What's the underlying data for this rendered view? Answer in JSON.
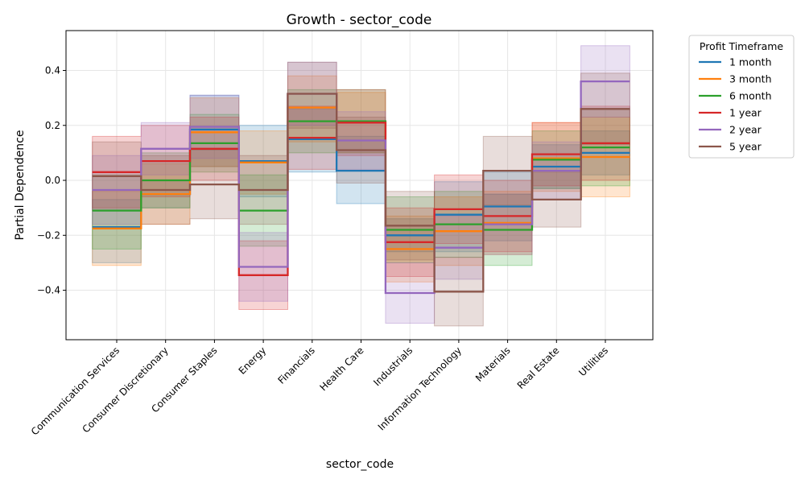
{
  "chart_data": {
    "type": "line",
    "title": "Growth - sector_code",
    "xlabel": "sector_code",
    "ylabel": "Partial Dependence",
    "categories": [
      "Communication Services",
      "Consumer Discretionary",
      "Consumer Staples",
      "Energy",
      "Financials",
      "Health Care",
      "Industrials",
      "Information Technology",
      "Materials",
      "Real Estate",
      "Utilities"
    ],
    "ylim": [
      -0.58,
      0.545
    ],
    "yticks": [
      -0.4,
      -0.2,
      0.0,
      0.2,
      0.4
    ],
    "ytick_labels": [
      "−0.4",
      "−0.2",
      "0.0",
      "0.2",
      "0.4"
    ],
    "grid": true,
    "legend": {
      "title": "Profit Timeframe",
      "placement": "outside-right"
    },
    "step_plot": true,
    "confidence_bands": true,
    "series": [
      {
        "name": "1 month",
        "color": "#1f77b4",
        "values": [
          -0.17,
          -0.05,
          0.185,
          0.07,
          0.15,
          0.035,
          -0.2,
          -0.125,
          -0.095,
          0.05,
          0.1
        ],
        "lower": [
          -0.3,
          -0.1,
          0.05,
          -0.06,
          0.03,
          -0.085,
          -0.26,
          -0.26,
          -0.22,
          -0.03,
          0.02
        ],
        "upper": [
          -0.07,
          0.0,
          0.31,
          0.2,
          0.26,
          0.16,
          -0.14,
          -0.005,
          0.03,
          0.13,
          0.18
        ]
      },
      {
        "name": "3 month",
        "color": "#ff7f0e",
        "values": [
          -0.175,
          -0.05,
          0.175,
          0.065,
          0.265,
          0.21,
          -0.25,
          -0.185,
          -0.155,
          0.08,
          0.085
        ],
        "lower": [
          -0.31,
          -0.16,
          0.05,
          -0.05,
          0.14,
          0.1,
          -0.37,
          -0.31,
          -0.27,
          -0.04,
          -0.06
        ],
        "upper": [
          -0.04,
          0.06,
          0.3,
          0.18,
          0.38,
          0.32,
          -0.13,
          -0.06,
          -0.04,
          0.21,
          0.23
        ]
      },
      {
        "name": "6 month",
        "color": "#2ca02c",
        "values": [
          -0.11,
          0.0,
          0.135,
          -0.11,
          0.215,
          0.215,
          -0.18,
          -0.16,
          -0.18,
          0.075,
          0.12
        ],
        "lower": [
          -0.25,
          -0.1,
          0.03,
          -0.24,
          0.1,
          0.1,
          -0.3,
          -0.28,
          -0.31,
          -0.03,
          -0.02
        ],
        "upper": [
          0.02,
          0.1,
          0.24,
          0.02,
          0.33,
          0.33,
          -0.06,
          -0.04,
          -0.05,
          0.18,
          0.26
        ]
      },
      {
        "name": "1 year",
        "color": "#d62728",
        "values": [
          0.03,
          0.07,
          0.115,
          -0.345,
          0.155,
          0.21,
          -0.225,
          -0.105,
          -0.13,
          0.095,
          0.135
        ],
        "lower": [
          -0.1,
          -0.06,
          0.0,
          -0.47,
          0.04,
          0.09,
          -0.35,
          -0.23,
          -0.26,
          -0.02,
          0.0
        ],
        "upper": [
          0.16,
          0.2,
          0.23,
          -0.22,
          0.27,
          0.33,
          -0.1,
          0.02,
          0.0,
          0.21,
          0.27
        ]
      },
      {
        "name": "2 year",
        "color": "#9467bd",
        "values": [
          -0.035,
          0.115,
          0.195,
          -0.315,
          0.315,
          0.145,
          -0.41,
          -0.245,
          -0.16,
          0.035,
          0.36
        ],
        "lower": [
          -0.16,
          0.02,
          0.08,
          -0.44,
          0.2,
          0.04,
          -0.52,
          -0.36,
          -0.27,
          -0.07,
          0.23
        ],
        "upper": [
          0.09,
          0.21,
          0.31,
          -0.19,
          0.43,
          0.25,
          -0.3,
          -0.13,
          -0.05,
          0.14,
          0.49
        ]
      },
      {
        "name": "5 year",
        "color": "#8c564b",
        "values": [
          0.015,
          -0.035,
          -0.015,
          -0.035,
          0.315,
          0.11,
          -0.165,
          -0.405,
          0.035,
          -0.07,
          0.26
        ],
        "lower": [
          -0.11,
          -0.16,
          -0.14,
          -0.16,
          0.19,
          -0.01,
          -0.29,
          -0.53,
          -0.09,
          -0.17,
          0.13
        ],
        "upper": [
          0.14,
          0.09,
          0.11,
          0.09,
          0.43,
          0.23,
          -0.04,
          -0.28,
          0.16,
          0.03,
          0.39
        ]
      }
    ]
  }
}
